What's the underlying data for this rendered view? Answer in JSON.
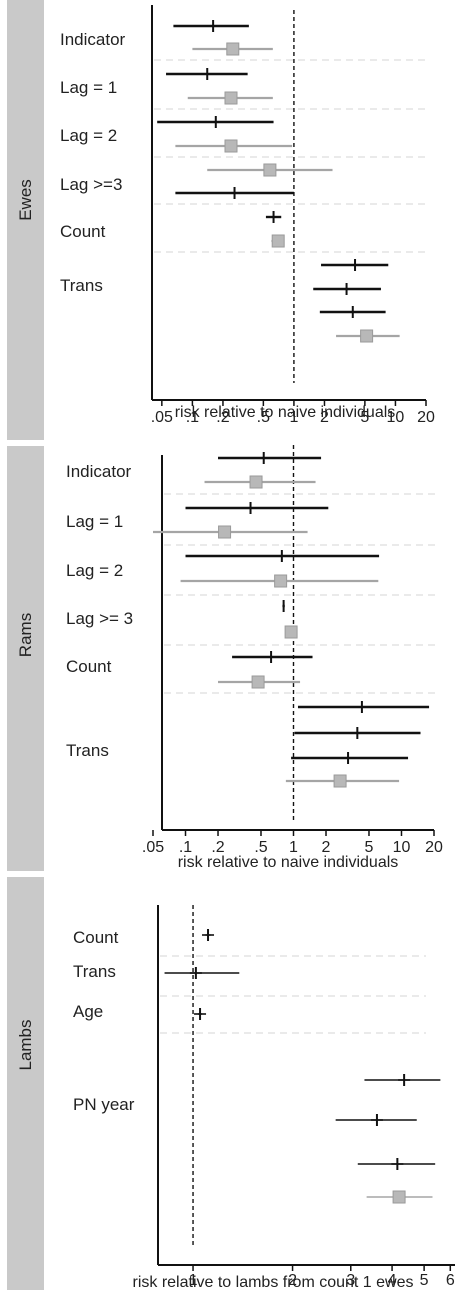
{
  "chart_data": [
    {
      "type": "forest",
      "panel": "Ewes",
      "scale": "log",
      "xlim": [
        0.04,
        20
      ],
      "ticks": [
        {
          "v": 0.05,
          "t": ".05"
        },
        {
          "v": 0.1,
          "t": ".1"
        },
        {
          "v": 0.2,
          "t": ".2"
        },
        {
          "v": 0.5,
          "t": ".5"
        },
        {
          "v": 1,
          "t": "1"
        },
        {
          "v": 2,
          "t": "2"
        },
        {
          "v": 5,
          "t": "5"
        },
        {
          "v": 10,
          "t": "10"
        },
        {
          "v": 20,
          "t": "20"
        }
      ],
      "reference_line": 1,
      "xlabel": "risk relative to naive individuals",
      "groups": [
        {
          "label": "Indicator",
          "rows": [
            {
              "est": 0.16,
              "lo": 0.065,
              "hi": 0.36,
              "style": "black"
            },
            {
              "est": 0.25,
              "lo": 0.1,
              "hi": 0.62,
              "style": "grey"
            }
          ]
        },
        {
          "label": "Lag = 1",
          "rows": [
            {
              "est": 0.14,
              "lo": 0.055,
              "hi": 0.35,
              "style": "black"
            },
            {
              "est": 0.24,
              "lo": 0.09,
              "hi": 0.62,
              "style": "grey"
            }
          ]
        },
        {
          "label": "Lag = 2",
          "rows": [
            {
              "est": 0.17,
              "lo": 0.045,
              "hi": 0.63,
              "style": "black"
            },
            {
              "est": 0.24,
              "lo": 0.068,
              "hi": 0.96,
              "style": "grey"
            }
          ]
        },
        {
          "label": "Lag >=3",
          "rows": [
            {
              "est": 0.58,
              "lo": 0.14,
              "hi": 2.4,
              "style": "grey"
            },
            {
              "est": 0.26,
              "lo": 0.068,
              "hi": 1.0,
              "style": "black"
            }
          ]
        },
        {
          "label": "Count",
          "rows": [
            {
              "est": 0.63,
              "lo": 0.53,
              "hi": 0.75,
              "style": "black"
            },
            {
              "est": 0.7,
              "lo": 0.6,
              "hi": 0.8,
              "style": "grey"
            }
          ]
        },
        {
          "label": "Trans",
          "rows": [
            {
              "est": 4.0,
              "lo": 1.85,
              "hi": 8.5,
              "style": "black"
            },
            {
              "est": 3.3,
              "lo": 1.55,
              "hi": 7.2,
              "style": "black"
            },
            {
              "est": 3.8,
              "lo": 1.8,
              "hi": 8.0,
              "style": "black"
            },
            {
              "est": 5.2,
              "lo": 2.6,
              "hi": 11.0,
              "style": "grey"
            }
          ]
        }
      ]
    },
    {
      "type": "forest",
      "panel": "Rams",
      "scale": "log",
      "xlim": [
        0.05,
        20
      ],
      "ticks": [
        {
          "v": 0.05,
          "t": ".05"
        },
        {
          "v": 0.1,
          "t": ".1"
        },
        {
          "v": 0.2,
          "t": ".2"
        },
        {
          "v": 0.5,
          "t": ".5"
        },
        {
          "v": 1,
          "t": "1"
        },
        {
          "v": 2,
          "t": "2"
        },
        {
          "v": 5,
          "t": "5"
        },
        {
          "v": 10,
          "t": "10"
        },
        {
          "v": 20,
          "t": "20"
        }
      ],
      "reference_line": 1,
      "xlabel": "risk relative to naive individuals",
      "groups": [
        {
          "label": "Indicator",
          "rows": [
            {
              "est": 0.53,
              "lo": 0.2,
              "hi": 1.8,
              "style": "black"
            },
            {
              "est": 0.45,
              "lo": 0.15,
              "hi": 1.6,
              "style": "grey"
            }
          ]
        },
        {
          "label": "Lag = 1",
          "rows": [
            {
              "est": 0.4,
              "lo": 0.1,
              "hi": 2.1,
              "style": "black"
            },
            {
              "est": 0.23,
              "lo": 0.05,
              "hi": 1.35,
              "style": "grey"
            }
          ]
        },
        {
          "label": "Lag = 2",
          "rows": [
            {
              "est": 0.78,
              "lo": 0.1,
              "hi": 6.2,
              "style": "black"
            },
            {
              "est": 0.76,
              "lo": 0.09,
              "hi": 6.1,
              "style": "grey"
            }
          ]
        },
        {
          "label": "Lag >= 3",
          "rows": [
            {
              "est": 0.81,
              "lo": 0.79,
              "hi": 0.83,
              "style": "black"
            },
            {
              "est": 0.95,
              "lo": 0.94,
              "hi": 0.96,
              "style": "grey"
            }
          ]
        },
        {
          "label": "Count",
          "rows": [
            {
              "est": 0.62,
              "lo": 0.27,
              "hi": 1.5,
              "style": "black"
            },
            {
              "est": 0.47,
              "lo": 0.2,
              "hi": 1.15,
              "style": "grey"
            }
          ]
        },
        {
          "label": "Trans",
          "rows": [
            {
              "est": 4.3,
              "lo": 1.1,
              "hi": 18.0,
              "style": "black"
            },
            {
              "est": 3.9,
              "lo": 1.02,
              "hi": 15.0,
              "style": "black"
            },
            {
              "est": 3.2,
              "lo": 0.95,
              "hi": 11.5,
              "style": "black"
            },
            {
              "est": 2.7,
              "lo": 0.85,
              "hi": 9.5,
              "style": "grey"
            }
          ]
        }
      ]
    },
    {
      "type": "forest",
      "panel": "Lambs",
      "scale": "log",
      "xlim": [
        0.8,
        6.2
      ],
      "ticks": [
        {
          "v": 1,
          "t": "1"
        },
        {
          "v": 2,
          "t": "2"
        },
        {
          "v": 3,
          "t": "3"
        },
        {
          "v": 4,
          "t": "4"
        },
        {
          "v": 5,
          "t": "5"
        },
        {
          "v": 6,
          "t": "6"
        }
      ],
      "reference_line": 1,
      "xlabel": "risk relative to lambs from count 1 ewes",
      "groups": [
        {
          "label": "Count",
          "rows": [
            {
              "est": 1.11,
              "lo": 1.09,
              "hi": 1.13,
              "style": "black"
            }
          ]
        },
        {
          "label": "Trans",
          "rows": [
            {
              "est": 1.02,
              "lo": 0.82,
              "hi": 1.38,
              "style": "black"
            }
          ]
        },
        {
          "label": "Age",
          "rows": [
            {
              "est": 1.05,
              "lo": 1.035,
              "hi": 1.065,
              "style": "black"
            }
          ]
        },
        {
          "label": "PN year",
          "rows": [
            {
              "est": 4.35,
              "lo": 3.3,
              "hi": 5.6,
              "style": "black"
            },
            {
              "est": 3.6,
              "lo": 2.7,
              "hi": 4.75,
              "style": "black"
            },
            {
              "est": 4.15,
              "lo": 3.15,
              "hi": 5.4,
              "style": "black"
            },
            {
              "est": 4.2,
              "lo": 3.35,
              "hi": 5.3,
              "style": "grey"
            }
          ]
        }
      ]
    }
  ]
}
